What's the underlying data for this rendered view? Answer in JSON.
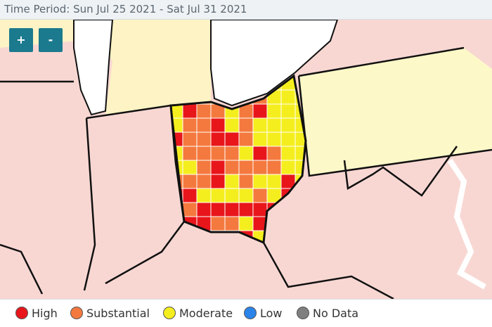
{
  "header": {
    "title": "Time Period: Sun Jul 25 2021 - Sat Jul 31 2021"
  },
  "controls": {
    "zoom_in": "+",
    "zoom_out": "-"
  },
  "legend": [
    {
      "label": "High",
      "color": "#e8161b"
    },
    {
      "label": "Substantial",
      "color": "#f4793e"
    },
    {
      "label": "Moderate",
      "color": "#f5ee1f"
    },
    {
      "label": "Low",
      "color": "#2a84ea"
    },
    {
      "label": "No Data",
      "color": "#7f7f7f"
    }
  ]
}
